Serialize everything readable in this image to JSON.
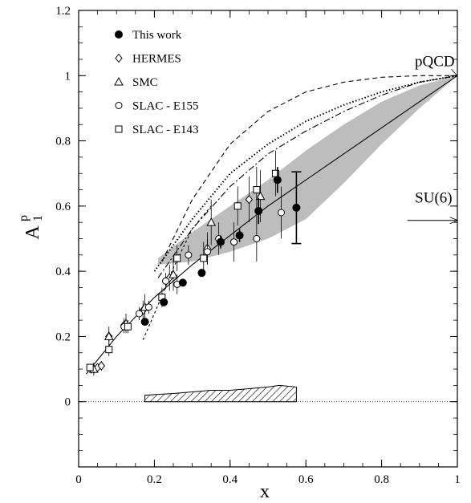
{
  "chart_data": {
    "type": "scatter",
    "xlabel": "x",
    "ylabel": "A",
    "ylabel_sup": "p",
    "ylabel_sub": "1",
    "xlim": [
      0,
      1
    ],
    "ylim": [
      -0.2,
      1.2
    ],
    "x_ticks": [
      0,
      0.2,
      0.4,
      0.6,
      0.8,
      1
    ],
    "x_tick_labels": [
      "0",
      "0.2",
      "0.4",
      "0.6",
      "0.8",
      "1"
    ],
    "y_ticks": [
      0,
      0.2,
      0.4,
      0.6,
      0.8,
      1,
      1.2
    ],
    "y_tick_labels": [
      "0",
      "0.2",
      "0.4",
      "0.6",
      "0.8",
      "1",
      "1.2"
    ],
    "grid": false,
    "legend_position": "top-left",
    "series": [
      {
        "name": "This work",
        "marker": "filled-circle",
        "points": [
          {
            "x": 0.175,
            "y": 0.245,
            "err": 0.0
          },
          {
            "x": 0.225,
            "y": 0.305,
            "err": 0.0
          },
          {
            "x": 0.275,
            "y": 0.365,
            "err": 0.0
          },
          {
            "x": 0.325,
            "y": 0.395,
            "err": 0.0
          },
          {
            "x": 0.375,
            "y": 0.49,
            "err": 0.02
          },
          {
            "x": 0.425,
            "y": 0.51,
            "err": 0.02
          },
          {
            "x": 0.475,
            "y": 0.585,
            "err": 0.04
          },
          {
            "x": 0.525,
            "y": 0.68,
            "err": 0.04
          },
          {
            "x": 0.575,
            "y": 0.595,
            "err": 0.11
          }
        ]
      },
      {
        "name": "HERMES",
        "marker": "open-diamond",
        "points": [
          {
            "x": 0.033,
            "y": 0.1,
            "err": 0.01
          },
          {
            "x": 0.04,
            "y": 0.1,
            "err": 0.01
          },
          {
            "x": 0.05,
            "y": 0.105,
            "err": 0.01
          },
          {
            "x": 0.06,
            "y": 0.11,
            "err": 0.015
          },
          {
            "x": 0.08,
            "y": 0.2,
            "err": 0.015
          },
          {
            "x": 0.12,
            "y": 0.235,
            "err": 0.02
          },
          {
            "x": 0.17,
            "y": 0.28,
            "err": 0.03
          },
          {
            "x": 0.24,
            "y": 0.38,
            "err": 0.04
          },
          {
            "x": 0.34,
            "y": 0.47,
            "err": 0.05
          },
          {
            "x": 0.45,
            "y": 0.62,
            "err": 0.07
          }
        ]
      },
      {
        "name": "SMC",
        "marker": "open-triangle",
        "points": [
          {
            "x": 0.04,
            "y": 0.1,
            "err": 0.02
          },
          {
            "x": 0.08,
            "y": 0.2,
            "err": 0.03
          },
          {
            "x": 0.125,
            "y": 0.24,
            "err": 0.03
          },
          {
            "x": 0.175,
            "y": 0.29,
            "err": 0.04
          },
          {
            "x": 0.25,
            "y": 0.39,
            "err": 0.05
          },
          {
            "x": 0.35,
            "y": 0.55,
            "err": 0.07
          },
          {
            "x": 0.48,
            "y": 0.63,
            "err": 0.08
          }
        ]
      },
      {
        "name": "SLAC - E155",
        "marker": "open-circle",
        "points": [
          {
            "x": 0.12,
            "y": 0.23,
            "err": 0.02
          },
          {
            "x": 0.16,
            "y": 0.27,
            "err": 0.02
          },
          {
            "x": 0.185,
            "y": 0.29,
            "err": 0.02
          },
          {
            "x": 0.23,
            "y": 0.37,
            "err": 0.025
          },
          {
            "x": 0.26,
            "y": 0.36,
            "err": 0.03
          },
          {
            "x": 0.29,
            "y": 0.45,
            "err": 0.03
          },
          {
            "x": 0.34,
            "y": 0.46,
            "err": 0.04
          },
          {
            "x": 0.37,
            "y": 0.5,
            "err": 0.05
          },
          {
            "x": 0.41,
            "y": 0.49,
            "err": 0.06
          },
          {
            "x": 0.47,
            "y": 0.5,
            "err": 0.07
          },
          {
            "x": 0.535,
            "y": 0.58,
            "err": 0.08
          }
        ]
      },
      {
        "name": "SLAC - E143",
        "marker": "open-square",
        "points": [
          {
            "x": 0.03,
            "y": 0.105,
            "err": 0.01
          },
          {
            "x": 0.08,
            "y": 0.16,
            "err": 0.02
          },
          {
            "x": 0.13,
            "y": 0.23,
            "err": 0.02
          },
          {
            "x": 0.22,
            "y": 0.32,
            "err": 0.03
          },
          {
            "x": 0.26,
            "y": 0.44,
            "err": 0.04
          },
          {
            "x": 0.33,
            "y": 0.44,
            "err": 0.05
          },
          {
            "x": 0.42,
            "y": 0.6,
            "err": 0.06
          },
          {
            "x": 0.47,
            "y": 0.65,
            "err": 0.07
          },
          {
            "x": 0.52,
            "y": 0.7,
            "err": 0.07
          }
        ]
      }
    ],
    "curves": [
      {
        "style": "solid",
        "x": [
          0.02,
          0.1,
          0.2,
          0.3,
          0.4,
          0.5,
          0.6,
          0.7,
          0.8,
          0.9,
          1.0
        ],
        "y": [
          0.085,
          0.2,
          0.32,
          0.42,
          0.51,
          0.6,
          0.68,
          0.76,
          0.84,
          0.92,
          1.0
        ]
      },
      {
        "style": "dashed",
        "x": [
          0.22,
          0.3,
          0.4,
          0.5,
          0.6,
          0.7,
          0.8,
          0.9,
          1.0
        ],
        "y": [
          0.43,
          0.62,
          0.79,
          0.89,
          0.95,
          0.98,
          0.995,
          1.0,
          1.0
        ]
      },
      {
        "style": "dotted",
        "x": [
          0.2,
          0.3,
          0.4,
          0.5,
          0.6,
          0.7,
          0.8,
          0.9,
          1.0
        ],
        "y": [
          0.4,
          0.56,
          0.7,
          0.79,
          0.86,
          0.91,
          0.95,
          0.98,
          1.0
        ]
      },
      {
        "style": "dash-dot",
        "x": [
          0.21,
          0.3,
          0.4,
          0.5,
          0.6,
          0.7,
          0.8,
          0.9,
          1.0
        ],
        "y": [
          0.38,
          0.53,
          0.66,
          0.76,
          0.83,
          0.89,
          0.94,
          0.98,
          1.0
        ]
      },
      {
        "style": "short-dashed",
        "x": [
          0.17,
          0.2,
          0.25,
          0.3,
          0.35
        ],
        "y": [
          0.19,
          0.27,
          0.41,
          0.53,
          0.6
        ]
      }
    ],
    "band": {
      "x": [
        0.21,
        0.3,
        0.4,
        0.5,
        0.6,
        0.7,
        0.8,
        0.9,
        1.0
      ],
      "upper": [
        0.44,
        0.52,
        0.6,
        0.68,
        0.77,
        0.85,
        0.92,
        0.97,
        1.0
      ],
      "lower": [
        0.42,
        0.43,
        0.46,
        0.5,
        0.56,
        0.67,
        0.79,
        0.9,
        1.0
      ]
    },
    "systematic_band": {
      "x": [
        0.175,
        0.25,
        0.3,
        0.35,
        0.4,
        0.45,
        0.5,
        0.53,
        0.575
      ],
      "upper": [
        0.02,
        0.025,
        0.03,
        0.035,
        0.035,
        0.04,
        0.045,
        0.05,
        0.045
      ],
      "lower": [
        0,
        0,
        0,
        0,
        0,
        0,
        0,
        0,
        0
      ]
    },
    "annotations": [
      {
        "text": "pQCD",
        "x": 0.995,
        "y": 1.0,
        "arrow": true
      },
      {
        "text": "SU(6)",
        "x": 0.995,
        "y": 0.556,
        "arrow": true
      }
    ]
  }
}
